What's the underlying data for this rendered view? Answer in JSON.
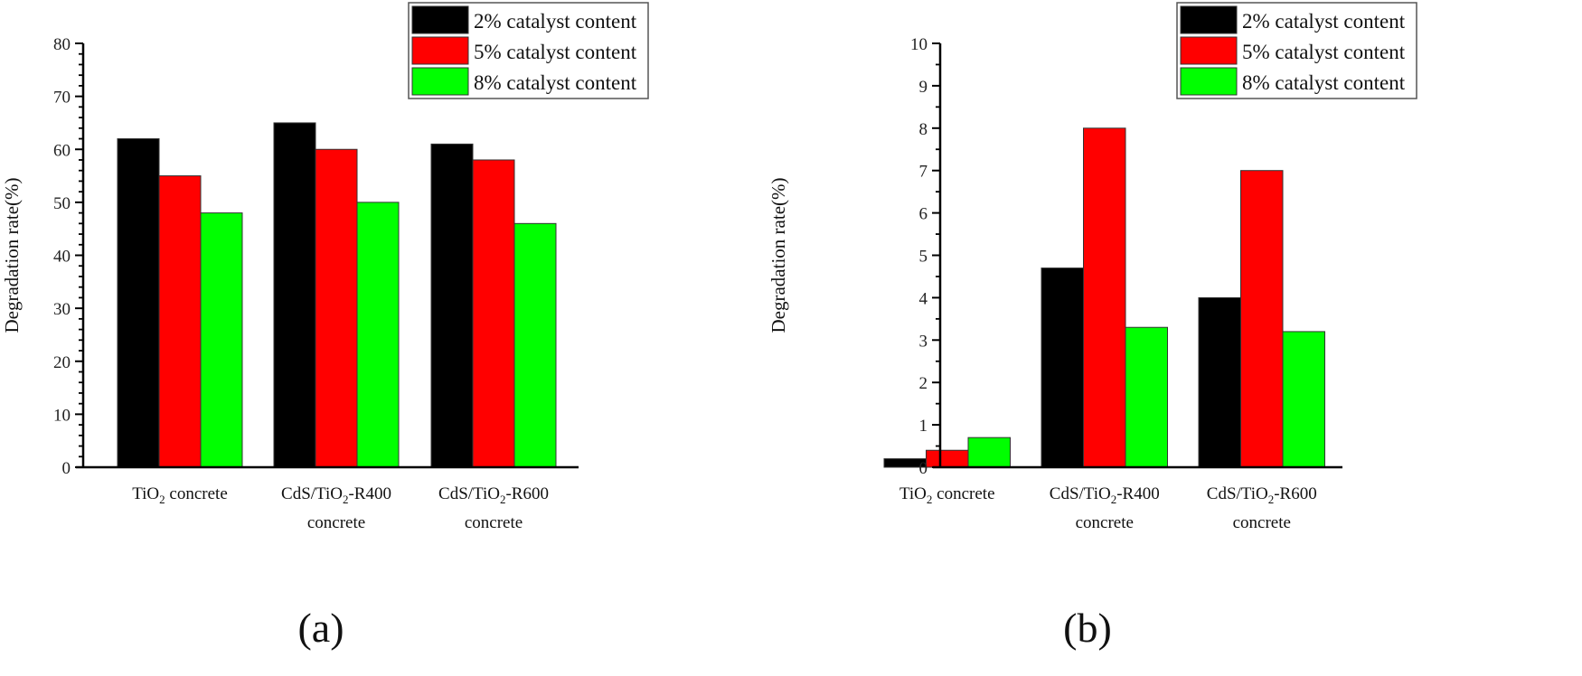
{
  "series_colors": {
    "2%": "#000000",
    "5%": "#ff0000",
    "8%": "#00ff00"
  },
  "legend": [
    "2% catalyst content",
    "5% catalyst content",
    "8% catalyst content"
  ],
  "chart_data": [
    {
      "type": "bar",
      "panel": "(a)",
      "title": "",
      "xlabel": "",
      "ylabel": "Degradation rate(%)",
      "ylim": [
        0,
        80
      ],
      "yticks": [
        0,
        10,
        20,
        30,
        40,
        50,
        60,
        70,
        80
      ],
      "grid": false,
      "legend_position": "top-right",
      "categories": [
        "TiO2 concrete",
        "CdS/TiO2-R400 concrete",
        "CdS/TiO2-R600 concrete"
      ],
      "series": [
        {
          "name": "2% catalyst content",
          "color": "#000000",
          "values": [
            62,
            65,
            61
          ]
        },
        {
          "name": "5% catalyst content",
          "color": "#ff0000",
          "values": [
            55,
            60,
            58
          ]
        },
        {
          "name": "8% catalyst content",
          "color": "#00ff00",
          "values": [
            48,
            50,
            46
          ]
        }
      ]
    },
    {
      "type": "bar",
      "panel": "(b)",
      "title": "",
      "xlabel": "",
      "ylabel": "Degradation rate(%)",
      "ylim": [
        0,
        10
      ],
      "yticks": [
        0,
        1,
        2,
        3,
        4,
        5,
        6,
        7,
        8,
        9,
        10
      ],
      "grid": false,
      "legend_position": "top-right",
      "categories": [
        "TiO2 concrete",
        "CdS/TiO2-R400 concrete",
        "CdS/TiO2-R600 concrete"
      ],
      "series": [
        {
          "name": "2% catalyst content",
          "color": "#000000",
          "values": [
            0.2,
            4.7,
            4.0
          ]
        },
        {
          "name": "5% catalyst content",
          "color": "#ff0000",
          "values": [
            0.4,
            8.0,
            7.0
          ]
        },
        {
          "name": "8% catalyst content",
          "color": "#00ff00",
          "values": [
            0.7,
            3.3,
            3.2
          ]
        }
      ]
    }
  ],
  "category_labels": [
    {
      "line1_pre": "TiO",
      "line1_sub": "2",
      "line1_post": " concrete",
      "line2": ""
    },
    {
      "line1_pre": "CdS/TiO",
      "line1_sub": "2",
      "line1_post": "-R400",
      "line2": "concrete"
    },
    {
      "line1_pre": "CdS/TiO",
      "line1_sub": "2",
      "line1_post": "-R600",
      "line2": "concrete"
    }
  ]
}
